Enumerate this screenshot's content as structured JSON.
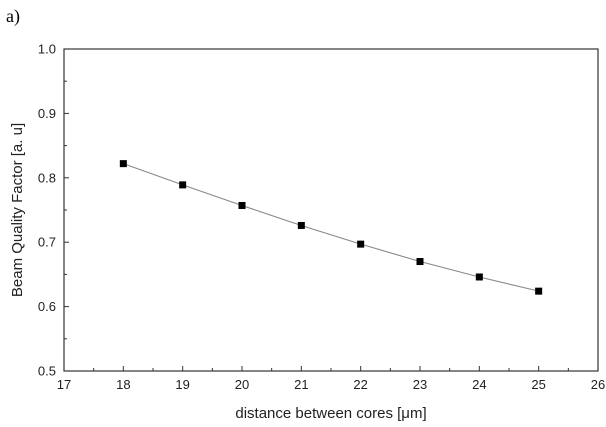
{
  "panel_label": "a)",
  "chart_data": {
    "type": "line",
    "title": "",
    "xlabel": "distance between cores [μm]",
    "ylabel": "Beam Quality Factor [a. u]",
    "xlim": [
      17,
      26
    ],
    "ylim": [
      0.5,
      1.0
    ],
    "xticks": [
      17,
      18,
      19,
      20,
      21,
      22,
      23,
      24,
      25,
      26
    ],
    "yticks": [
      0.5,
      0.6,
      0.7,
      0.8,
      0.9,
      1.0
    ],
    "ytick_labels": [
      "0.5",
      "0.6",
      "0.7",
      "0.8",
      "0.9",
      "1.0"
    ],
    "grid": false,
    "legend": "none",
    "series": [
      {
        "marker": "square",
        "color": "#000000",
        "line_color": "#888888",
        "x": [
          18,
          19,
          20,
          21,
          22,
          23,
          24,
          25
        ],
        "y": [
          0.822,
          0.789,
          0.757,
          0.726,
          0.697,
          0.67,
          0.646,
          0.624
        ]
      }
    ]
  }
}
